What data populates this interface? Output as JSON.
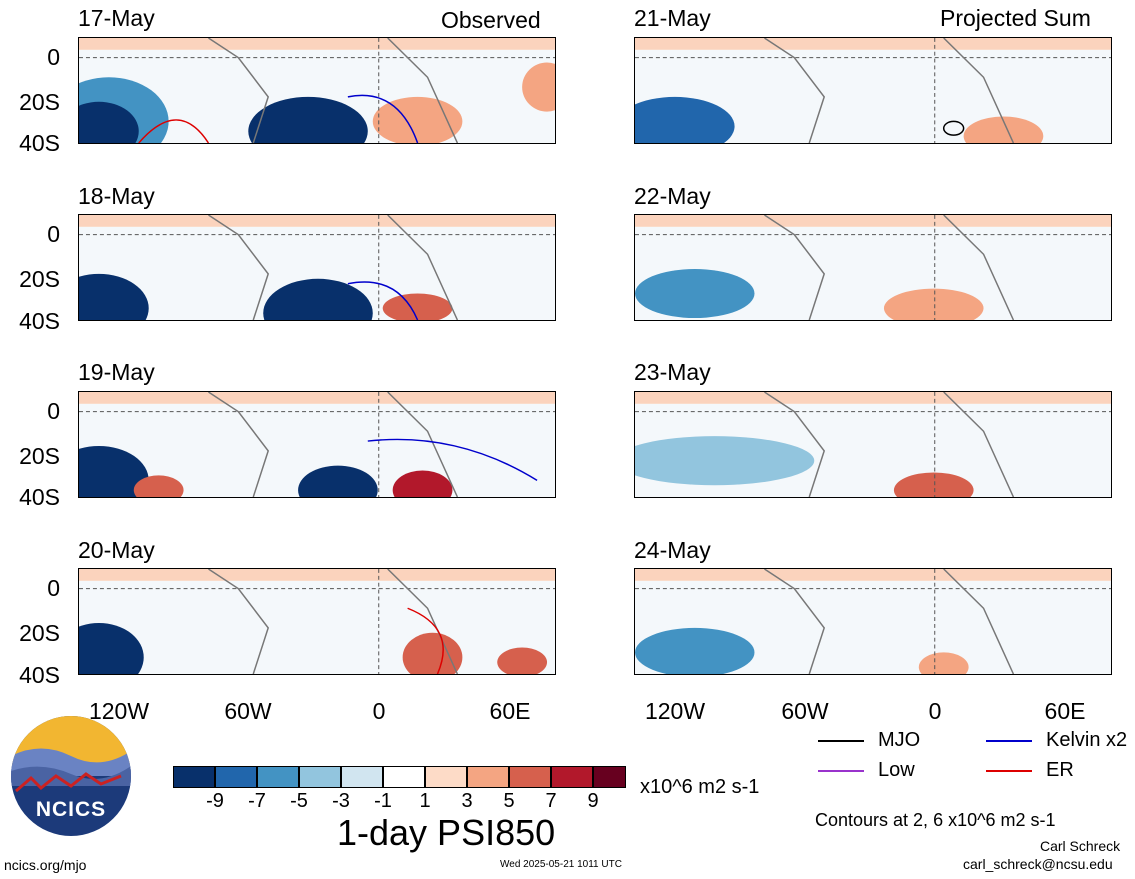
{
  "columns": {
    "left_label": "Observed",
    "right_label": "Projected Sum"
  },
  "panels_left": [
    "17-May",
    "18-May",
    "19-May",
    "20-May"
  ],
  "panels_right": [
    "21-May",
    "22-May",
    "23-May",
    "24-May"
  ],
  "y_ticks": [
    "0",
    "20S",
    "40S"
  ],
  "x_ticks": [
    "120W",
    "60W",
    "0",
    "60E"
  ],
  "legend": {
    "items": [
      {
        "label": "MJO",
        "color": "#000000"
      },
      {
        "label": "Kelvin x2",
        "color": "#0000cc"
      },
      {
        "label": "Low",
        "color": "#9933cc"
      },
      {
        "label": "ER",
        "color": "#dd0000"
      }
    ],
    "contours_note": "Contours at 2, 6 x10^6 m2 s-1"
  },
  "colorbar": {
    "colors": [
      "#08306b",
      "#2166ac",
      "#4393c3",
      "#92c5de",
      "#d1e5f0",
      "#ffffff",
      "#fddbc7",
      "#f4a582",
      "#d6604d",
      "#b2182b",
      "#67001f"
    ],
    "ticks": [
      "-9",
      "-7",
      "-5",
      "-3",
      "-1",
      "1",
      "3",
      "5",
      "7",
      "9"
    ],
    "units": "x10^6 m2 s-1",
    "title": "1-day PSI850"
  },
  "logo": {
    "text": "NCICS"
  },
  "footer": {
    "site": "ncics.org/mjo",
    "timestamp": "Wed 2025-05-21 1011 UTC",
    "author": "Carl Schreck",
    "email": "carl_schreck@ncsu.edu"
  }
}
